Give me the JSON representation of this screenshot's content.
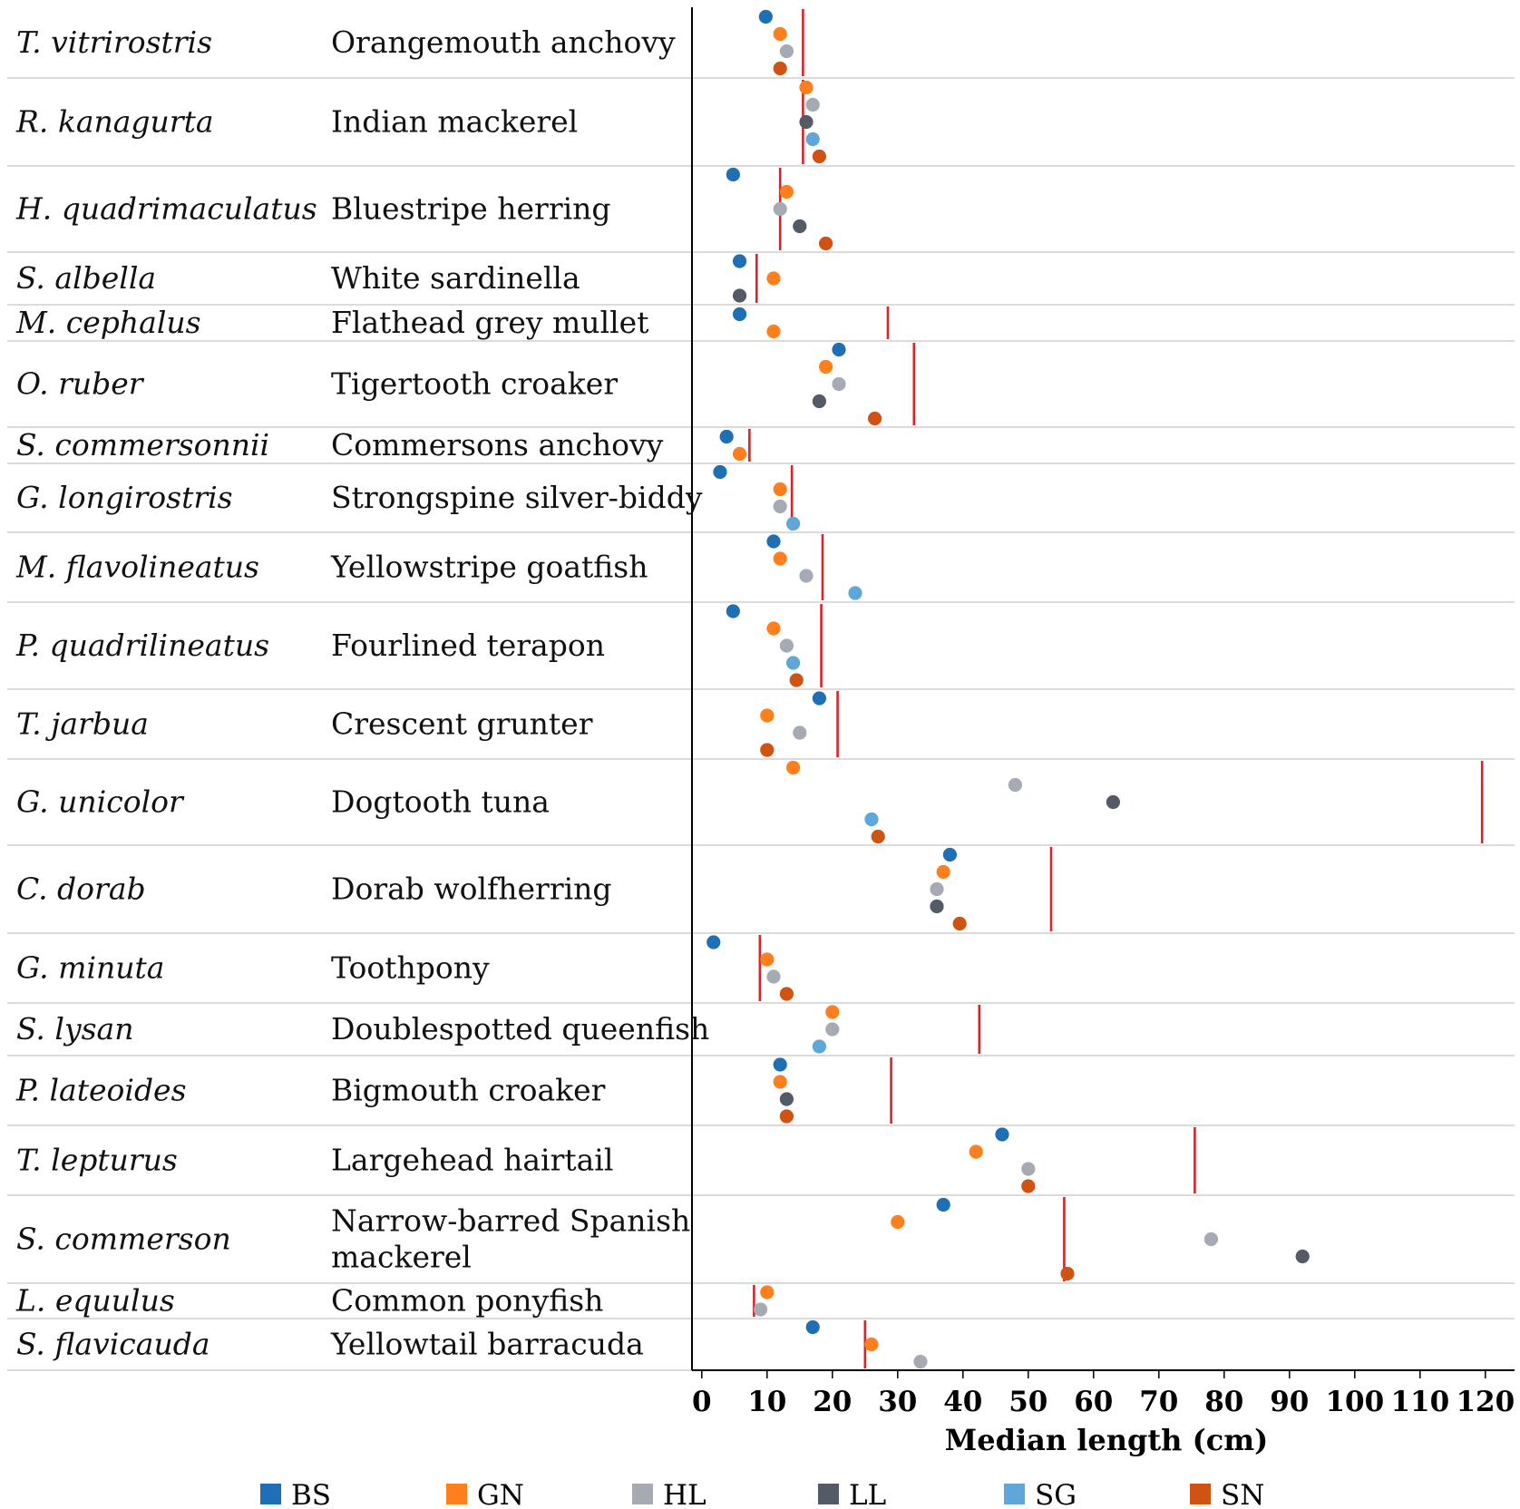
{
  "chart_data": {
    "type": "scatter",
    "title": "",
    "xlabel": "Median length (cm)",
    "ylabel": "",
    "xlim": [
      -1.5,
      124.5
    ],
    "x_ticks": [
      "0",
      "10",
      "20",
      "30",
      "40",
      "50",
      "60",
      "70",
      "80",
      "90",
      "100",
      "110",
      "120"
    ],
    "grid": false,
    "legend_position": "bottom",
    "reference_marker": "vertical red line per species",
    "series": [
      {
        "key": "BS",
        "name": "BS",
        "color": "#1f6fb4"
      },
      {
        "key": "GN",
        "name": "GN",
        "color": "#ff7f1e"
      },
      {
        "key": "HL",
        "name": "HL",
        "color": "#a6abb3"
      },
      {
        "key": "LL",
        "name": "LL",
        "color": "#555b66"
      },
      {
        "key": "SG",
        "name": "SG",
        "color": "#5ea7d8"
      },
      {
        "key": "SN",
        "name": "SN",
        "color": "#cf5414"
      }
    ],
    "reference_color": "#d8232a",
    "species": [
      {
        "sci": "T. vitrirostris",
        "common": [
          "Orangemouth anchovy"
        ],
        "ref": 15.5,
        "points": [
          {
            "s": "BS",
            "v": 9.8
          },
          {
            "s": "GN",
            "v": 12
          },
          {
            "s": "HL",
            "v": 13
          },
          {
            "s": "SN",
            "v": 12
          }
        ]
      },
      {
        "sci": "R. kanagurta",
        "common": [
          "Indian mackerel"
        ],
        "ref": 15.5,
        "points": [
          {
            "s": "GN",
            "v": 16
          },
          {
            "s": "HL",
            "v": 17
          },
          {
            "s": "LL",
            "v": 16
          },
          {
            "s": "SG",
            "v": 17
          },
          {
            "s": "SN",
            "v": 18
          }
        ]
      },
      {
        "sci": "H. quadrimaculatus",
        "common": [
          "Bluestripe herring"
        ],
        "ref": 12,
        "points": [
          {
            "s": "BS",
            "v": 4.8
          },
          {
            "s": "GN",
            "v": 13
          },
          {
            "s": "HL",
            "v": 12
          },
          {
            "s": "LL",
            "v": 15
          },
          {
            "s": "SN",
            "v": 19
          }
        ]
      },
      {
        "sci": "S. albella",
        "common": [
          "White sardinella"
        ],
        "ref": 8.4,
        "points": [
          {
            "s": "BS",
            "v": 5.8
          },
          {
            "s": "GN",
            "v": 11
          },
          {
            "s": "LL",
            "v": 5.8
          }
        ]
      },
      {
        "sci": "M. cephalus",
        "common": [
          "Flathead grey mullet"
        ],
        "ref": 28.5,
        "points": [
          {
            "s": "BS",
            "v": 5.8
          },
          {
            "s": "GN",
            "v": 11
          }
        ]
      },
      {
        "sci": "O. ruber",
        "common": [
          "Tigertooth croaker"
        ],
        "ref": 32.5,
        "points": [
          {
            "s": "BS",
            "v": 21
          },
          {
            "s": "GN",
            "v": 19
          },
          {
            "s": "HL",
            "v": 21
          },
          {
            "s": "LL",
            "v": 18
          },
          {
            "s": "SN",
            "v": 26.5
          }
        ]
      },
      {
        "sci": "S. commersonnii",
        "common": [
          "Commersons anchovy"
        ],
        "ref": 7.3,
        "points": [
          {
            "s": "BS",
            "v": 3.8
          },
          {
            "s": "GN",
            "v": 5.8
          }
        ]
      },
      {
        "sci": "G. longirostris",
        "common": [
          "Strongspine silver-biddy"
        ],
        "ref": 13.8,
        "points": [
          {
            "s": "BS",
            "v": 2.8
          },
          {
            "s": "GN",
            "v": 12
          },
          {
            "s": "HL",
            "v": 12
          },
          {
            "s": "SG",
            "v": 14
          }
        ]
      },
      {
        "sci": "M. flavolineatus",
        "common": [
          "Yellowstripe goatfish"
        ],
        "ref": 18.5,
        "points": [
          {
            "s": "BS",
            "v": 11
          },
          {
            "s": "GN",
            "v": 12
          },
          {
            "s": "HL",
            "v": 16
          },
          {
            "s": "SG",
            "v": 23.5
          }
        ]
      },
      {
        "sci": "P. quadrilineatus",
        "common": [
          "Fourlined terapon"
        ],
        "ref": 18.3,
        "points": [
          {
            "s": "BS",
            "v": 4.8
          },
          {
            "s": "GN",
            "v": 11
          },
          {
            "s": "HL",
            "v": 13
          },
          {
            "s": "SG",
            "v": 14
          },
          {
            "s": "SN",
            "v": 14.5
          }
        ]
      },
      {
        "sci": "T. jarbua",
        "common": [
          "Crescent grunter"
        ],
        "ref": 20.8,
        "points": [
          {
            "s": "BS",
            "v": 18
          },
          {
            "s": "GN",
            "v": 10
          },
          {
            "s": "HL",
            "v": 15
          },
          {
            "s": "SN",
            "v": 10
          }
        ]
      },
      {
        "sci": "G. unicolor",
        "common": [
          "Dogtooth tuna"
        ],
        "ref": 119.5,
        "points": [
          {
            "s": "GN",
            "v": 14
          },
          {
            "s": "HL",
            "v": 48
          },
          {
            "s": "LL",
            "v": 63
          },
          {
            "s": "SG",
            "v": 26
          },
          {
            "s": "SN",
            "v": 27
          }
        ]
      },
      {
        "sci": "C. dorab",
        "common": [
          "Dorab wolfherring"
        ],
        "ref": 53.5,
        "points": [
          {
            "s": "BS",
            "v": 38
          },
          {
            "s": "GN",
            "v": 37
          },
          {
            "s": "HL",
            "v": 36
          },
          {
            "s": "LL",
            "v": 36
          },
          {
            "s": "SN",
            "v": 39.5
          }
        ]
      },
      {
        "sci": "G. minuta",
        "common": [
          "Toothpony"
        ],
        "ref": 8.9,
        "points": [
          {
            "s": "BS",
            "v": 1.8
          },
          {
            "s": "GN",
            "v": 10
          },
          {
            "s": "HL",
            "v": 11
          },
          {
            "s": "SN",
            "v": 13
          }
        ]
      },
      {
        "sci": "S. lysan",
        "common": [
          "Doublespotted queenfish"
        ],
        "ref": 42.5,
        "points": [
          {
            "s": "GN",
            "v": 20
          },
          {
            "s": "HL",
            "v": 20
          },
          {
            "s": "SG",
            "v": 18
          }
        ]
      },
      {
        "sci": "P. lateoides",
        "common": [
          "Bigmouth croaker"
        ],
        "ref": 29,
        "points": [
          {
            "s": "BS",
            "v": 12
          },
          {
            "s": "GN",
            "v": 12
          },
          {
            "s": "LL",
            "v": 13
          },
          {
            "s": "SN",
            "v": 13
          }
        ]
      },
      {
        "sci": "T. lepturus",
        "common": [
          "Largehead hairtail"
        ],
        "ref": 75.5,
        "points": [
          {
            "s": "BS",
            "v": 46
          },
          {
            "s": "GN",
            "v": 42
          },
          {
            "s": "HL",
            "v": 50
          },
          {
            "s": "SN",
            "v": 50
          }
        ]
      },
      {
        "sci": "S. commerson",
        "common": [
          "Narrow-barred Spanish",
          "mackerel"
        ],
        "ref": 55.5,
        "points": [
          {
            "s": "BS",
            "v": 37
          },
          {
            "s": "GN",
            "v": 30
          },
          {
            "s": "HL",
            "v": 78
          },
          {
            "s": "LL",
            "v": 92
          },
          {
            "s": "SN",
            "v": 56
          }
        ]
      },
      {
        "sci": "L. equulus",
        "common": [
          "Common ponyfish"
        ],
        "ref": 8,
        "points": [
          {
            "s": "GN",
            "v": 10
          },
          {
            "s": "HL",
            "v": 9
          }
        ]
      },
      {
        "sci": "S. flavicauda",
        "common": [
          "Yellowtail barracuda"
        ],
        "ref": 25,
        "points": [
          {
            "s": "BS",
            "v": 17
          },
          {
            "s": "GN",
            "v": 26
          },
          {
            "s": "HL",
            "v": 33.5
          }
        ]
      }
    ]
  }
}
